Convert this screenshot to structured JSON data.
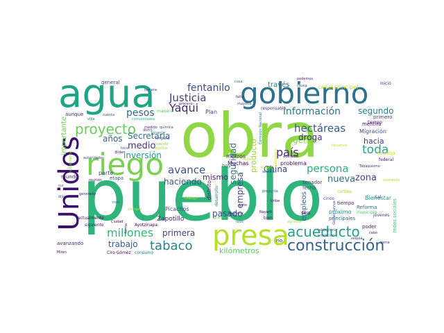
{
  "cloud": {
    "words": [
      {
        "text": "pueblo",
        "color": "#2fb47c"
      },
      {
        "text": "obra",
        "color": "#8fd744"
      },
      {
        "text": "agua",
        "color": "#20a486"
      },
      {
        "text": "gobierno",
        "color": "#2c718e"
      },
      {
        "text": "Unidos",
        "color": "#3b0f70"
      },
      {
        "text": "riego",
        "color": "#7ad151"
      },
      {
        "text": "presa",
        "color": "#b5de2b"
      },
      {
        "text": "proyecto",
        "color": "#6ccd5a"
      },
      {
        "text": "construcción",
        "color": "#33638d"
      },
      {
        "text": "acueducto",
        "color": "#1fa187"
      },
      {
        "text": "tabaco",
        "color": "#26828e"
      },
      {
        "text": "millones",
        "color": "#35b779"
      },
      {
        "text": "fentanilo",
        "color": "#3e4989"
      },
      {
        "text": "Justicia",
        "color": "#433e85"
      },
      {
        "text": "Yaqui",
        "color": "#482878"
      },
      {
        "text": "pesos",
        "color": "#31688e"
      },
      {
        "text": "información",
        "color": "#2a788e"
      },
      {
        "text": "segundo",
        "color": "#25848e"
      },
      {
        "text": "hectáreas",
        "color": "#39568c"
      },
      {
        "text": "años",
        "color": "#355f8d"
      },
      {
        "text": "Secretaría",
        "color": "#2e6e8e"
      },
      {
        "text": "medio",
        "color": "#46337e"
      },
      {
        "text": "inversión",
        "color": "#1e9b8a"
      },
      {
        "text": "avance",
        "color": "#3b528b"
      },
      {
        "text": "persona",
        "color": "#29af7f"
      },
      {
        "text": "país",
        "color": "#472d7b"
      },
      {
        "text": "nueva",
        "color": "#2d708e"
      },
      {
        "text": "zona",
        "color": "#414487"
      },
      {
        "text": "toda",
        "color": "#22a785"
      },
      {
        "text": "hacia",
        "color": "#443983"
      },
      {
        "text": "gente",
        "color": "#86d549"
      },
      {
        "text": "droga",
        "color": "#46307e"
      },
      {
        "text": "China",
        "color": "#3f4788"
      },
      {
        "text": "haciendo",
        "color": "#3a548c"
      },
      {
        "text": "mismo",
        "color": "#481f70"
      },
      {
        "text": "empresa",
        "color": "#404688"
      },
      {
        "text": "seguridad",
        "color": "#2b758e"
      },
      {
        "text": "producto",
        "color": "#9bd93c"
      },
      {
        "text": "pasado",
        "color": "#3e4c8a"
      },
      {
        "text": "primera",
        "color": "#424186"
      },
      {
        "text": "trabajo",
        "color": "#365c8d"
      },
      {
        "text": "kilómetros",
        "color": "#5ec962"
      },
      {
        "text": "Zapotillo",
        "color": "#482173"
      },
      {
        "text": "importante",
        "color": "#6ece58"
      },
      {
        "text": "empleos",
        "color": "#34618d"
      },
      {
        "text": "través",
        "color": "#2a768e"
      },
      {
        "text": "canal principal",
        "color": "#c2df23"
      },
      {
        "text": "Plan",
        "color": "#453781"
      },
      {
        "text": "Muchas",
        "color": "#440154"
      },
      {
        "text": "metros",
        "color": "#46327e"
      },
      {
        "text": "problema",
        "color": "#471063"
      },
      {
        "text": "Migración",
        "color": "#3d4e8a"
      },
      {
        "text": "mentira",
        "color": "#460b5e"
      },
      {
        "text": "Bienestar",
        "color": "#1f9e89"
      },
      {
        "text": "Sinaloa",
        "color": "#d2e21b"
      },
      {
        "text": "senador",
        "color": "#453882"
      },
      {
        "text": "fecha",
        "color": "#3c4f8a"
      },
      {
        "text": "próximo",
        "color": "#21918c"
      },
      {
        "text": "principales",
        "color": "#31668e"
      },
      {
        "text": "tiempo",
        "color": "#48186a"
      },
      {
        "text": "Reforma",
        "color": "#2e6d8e"
      },
      {
        "text": "municipio",
        "color": "#52c569"
      },
      {
        "text": "redes sociales",
        "color": "#46c06f"
      },
      {
        "text": "Picachos",
        "color": "#3d4d8a"
      },
      {
        "text": "distrito",
        "color": "#481b6d"
      },
      {
        "text": "desarrollo",
        "color": "#2d718e"
      },
      {
        "text": "Ayotzinapa",
        "color": "#440154"
      },
      {
        "text": "Ciro Gómez",
        "color": "#450559"
      },
      {
        "text": "consumo",
        "color": "#2c738e"
      },
      {
        "text": "avanzando",
        "color": "#482576"
      },
      {
        "text": "siguiente",
        "color": "#481668"
      },
      {
        "text": "actualmente",
        "color": "#46085c"
      },
      {
        "text": "general",
        "color": "#3e4a89"
      },
      {
        "text": "aunque",
        "color": "#472c7a"
      },
      {
        "text": "mundo",
        "color": "#482475"
      },
      {
        "text": "parte",
        "color": "#3f4889"
      },
      {
        "text": "etapa",
        "color": "#365d8d"
      },
      {
        "text": "hoy",
        "color": "#2f6b8e"
      },
      {
        "text": "río",
        "color": "#471365"
      },
      {
        "text": "seis",
        "color": "#450457"
      },
      {
        "text": "bien",
        "color": "#481c6e"
      },
      {
        "text": "laboratorio",
        "color": "#3c508b"
      },
      {
        "text": "población",
        "color": "#2b748e"
      },
      {
        "text": "poder",
        "color": "#481769"
      },
      {
        "text": "cabo",
        "color": "#472a7a"
      },
      {
        "text": "Sal",
        "color": "#3f4889"
      },
      {
        "text": "jóvenes",
        "color": "#472f7d"
      },
      {
        "text": "federal",
        "color": "#48196b"
      },
      {
        "text": "primero",
        "color": "#433d84"
      },
      {
        "text": "tiempo",
        "color": "#481a6c"
      },
      {
        "text": "responsable",
        "color": "#453581"
      },
      {
        "text": "inició",
        "color": "#482979"
      },
      {
        "text": "cortina",
        "color": "#a0da39"
      },
      {
        "text": "cinco",
        "color": "#404387"
      },
      {
        "text": "Tabaquismo",
        "color": "#481f70"
      },
      {
        "text": "reunión",
        "color": "#471164"
      },
      {
        "text": "Ciudad",
        "color": "#460a5d"
      },
      {
        "text": "manera",
        "color": "#5cc863"
      },
      {
        "text": "vida",
        "color": "#2a788e"
      },
      {
        "text": "dicho",
        "color": "#46337e"
      },
      {
        "text": "toca",
        "color": "#3b528b"
      },
      {
        "text": "forma",
        "color": "#482677"
      },
      {
        "text": "lado",
        "color": "#26828e"
      },
      {
        "text": "siete",
        "color": "#481467"
      },
      {
        "text": "Nayarit",
        "color": "#440154"
      },
      {
        "text": "Llevar",
        "color": "#c8e020"
      },
      {
        "text": "Diálogo",
        "color": "#b8de29"
      },
      {
        "text": "mañana",
        "color": "#482979"
      },
      {
        "text": "pregunta",
        "color": "#31688e"
      },
      {
        "text": "Cuarto",
        "color": "#addc30"
      },
      {
        "text": "grande",
        "color": "#5ec962"
      },
      {
        "text": "adelante",
        "color": "#471063"
      },
      {
        "text": "química",
        "color": "#39568c"
      },
      {
        "text": "Ucrania",
        "color": "#2c728e"
      },
      {
        "text": "ninguna",
        "color": "#3f4788"
      },
      {
        "text": "cuando",
        "color": "#8bd646"
      },
      {
        "text": "objetivo",
        "color": "#b2dd2d"
      },
      {
        "text": "mayoría",
        "color": "#3b528b"
      },
      {
        "text": "falta",
        "color": "#481f70"
      },
      {
        "text": "causa",
        "color": "#3e4989"
      },
      {
        "text": "podemos",
        "color": "#471365"
      },
      {
        "text": "componente",
        "color": "#7fd34e"
      },
      {
        "text": "comunidades",
        "color": "#2fb47c"
      },
      {
        "text": "generado",
        "color": "#482173"
      },
      {
        "text": "cuenta",
        "color": "#3b528b"
      },
      {
        "text": "medido",
        "color": "#482878"
      },
      {
        "text": "tercera",
        "color": "#46337e"
      },
      {
        "text": "autoridades",
        "color": "#404688"
      },
      {
        "text": "Biden",
        "color": "#481769"
      },
      {
        "text": "siempre",
        "color": "#b5de2b"
      },
      {
        "text": "más",
        "color": "#2e6e8e"
      },
      {
        "text": "sur",
        "color": "#38598c"
      },
      {
        "text": "dijo",
        "color": "#3d4d8a"
      },
      {
        "text": "proceso",
        "color": "#481c6e"
      },
      {
        "text": "llevamos",
        "color": "#c2df23"
      },
      {
        "text": "cosa",
        "color": "#2a788e"
      },
      {
        "text": "Miren",
        "color": "#440154"
      },
      {
        "text": "Comisión Nacional",
        "color": "#2c718e"
      },
      {
        "text": "Gómez Leyva",
        "color": "#3e4a89"
      },
      {
        "text": "agrícola",
        "color": "#9bd93c"
      },
      {
        "text": "acuerdo",
        "color": "#31688e"
      },
      {
        "text": "Uribe",
        "color": "#471063"
      },
      {
        "text": "sequía",
        "color": "#482475"
      },
      {
        "text": "pertenece",
        "color": "#c2df23"
      },
      {
        "text": "momento",
        "color": "#addc30"
      },
      {
        "text": "tierra",
        "color": "#472d7b"
      }
    ]
  }
}
